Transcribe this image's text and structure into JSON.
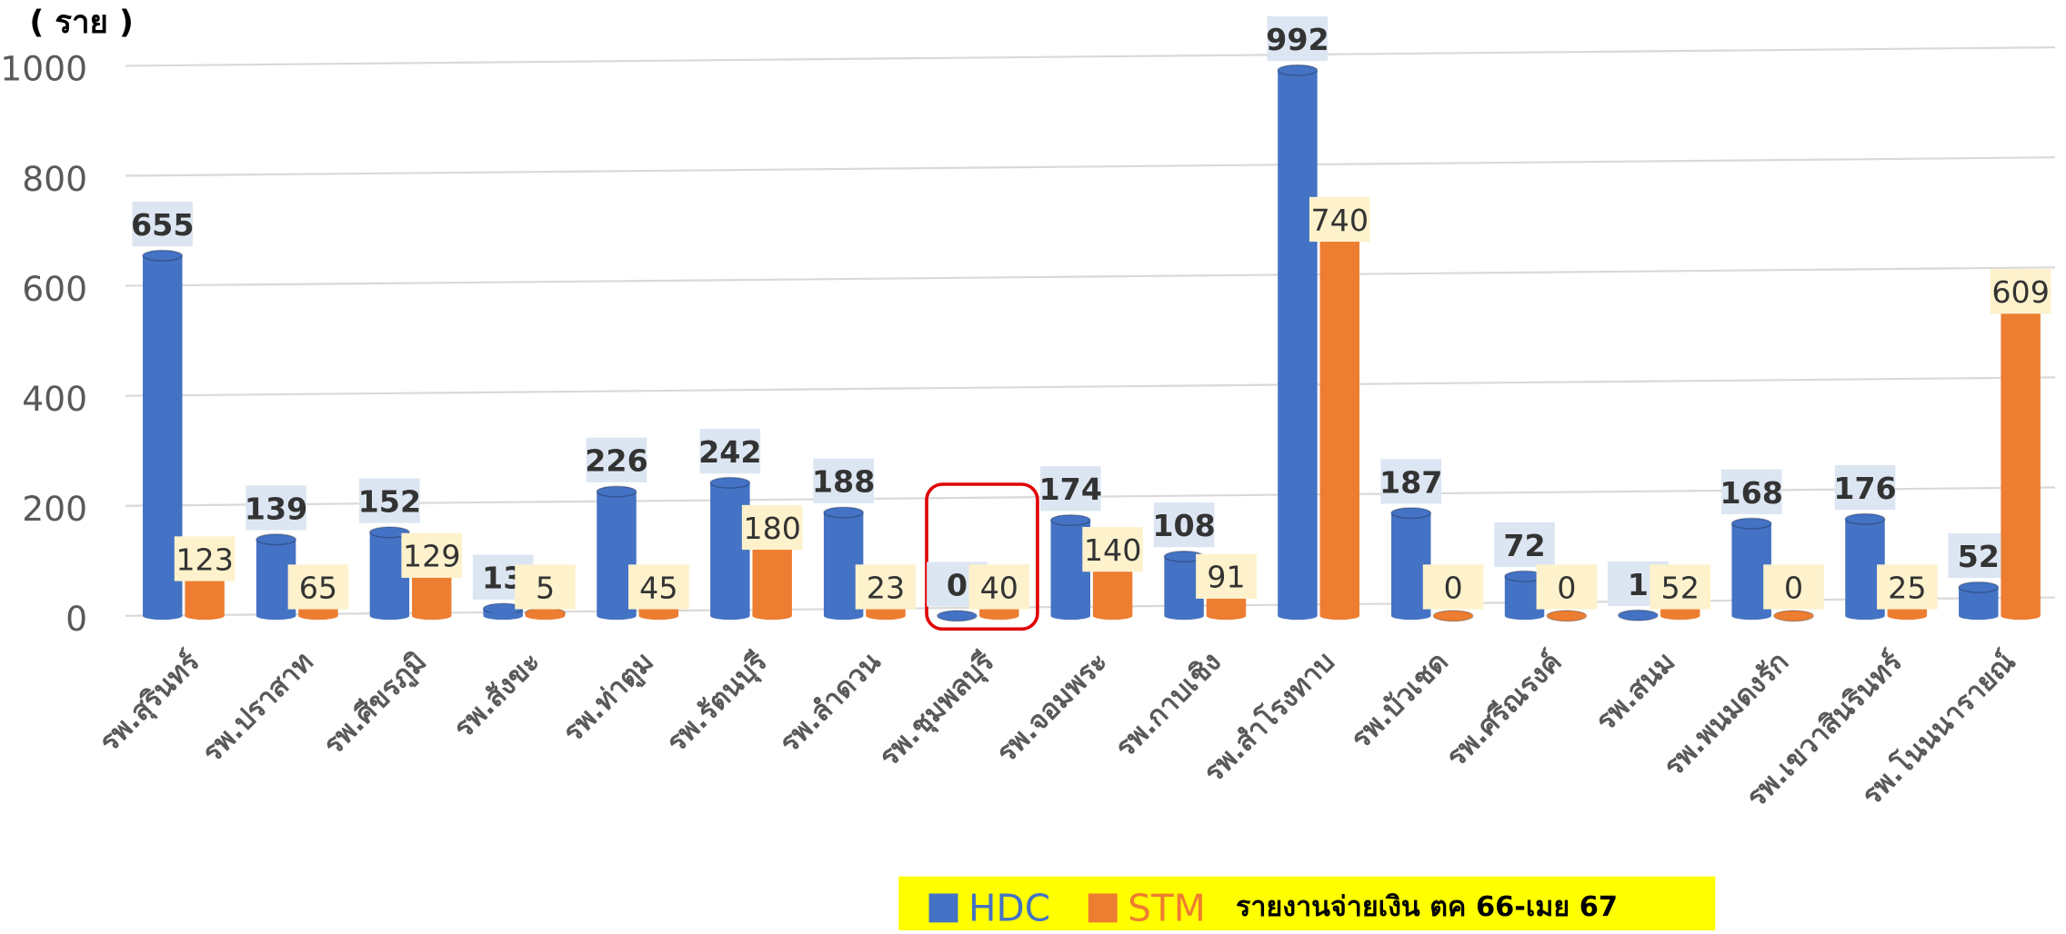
{
  "chart_data": {
    "type": "bar",
    "y_axis_label": "( ราย )",
    "categories": [
      "รพ.สุรินทร์",
      "รพ.ปราสาท",
      "รพ.ศีขรภูมิ",
      "รพ.สังขะ",
      "รพ.ท่าตูม",
      "รพ.รัตนบุรี",
      "รพ.ลำดวน",
      "รพ.ชุมพลบุรี",
      "รพ.จอมพระ",
      "รพ.กาบเชิง",
      "รพ.สำโรงทาบ",
      "รพ.บัวเชด",
      "รพ.ศรีณรงค์",
      "รพ.สนม",
      "รพ.พนมดงรัก",
      "รพ.เขวาสินรินทร์",
      "รพ.โนนนารายณ์"
    ],
    "series": [
      {
        "name": "HDC",
        "color": "#4472c4",
        "values": [
          655,
          139,
          152,
          13,
          226,
          242,
          188,
          0,
          174,
          108,
          992,
          187,
          72,
          1,
          168,
          176,
          52
        ]
      },
      {
        "name": "STM",
        "color": "#ed7d31",
        "values": [
          123,
          65,
          129,
          5,
          45,
          180,
          23,
          40,
          140,
          91,
          740,
          0,
          0,
          52,
          0,
          25,
          609
        ]
      }
    ],
    "ylim": [
      0,
      1000
    ],
    "yticks": [
      0,
      200,
      400,
      600,
      800,
      1000
    ],
    "grid": true,
    "legend_note": "รายงานจ่ายเงิน ตค 66-เมย 67"
  }
}
